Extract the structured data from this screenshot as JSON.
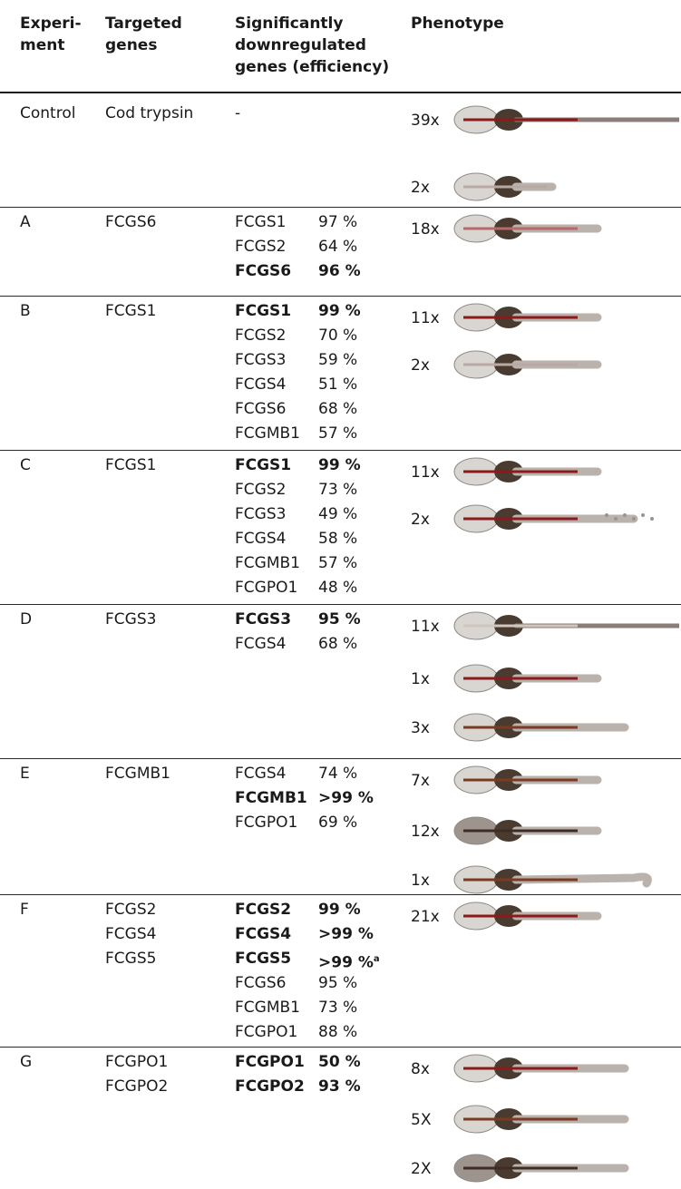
{
  "headers": {
    "experiment": [
      "Experi-",
      "ment"
    ],
    "targeted": [
      "Targeted",
      "genes"
    ],
    "downreg": [
      "Significantly",
      "downregulated",
      "genes (efficiency)"
    ],
    "phenotype": [
      "Phenotype"
    ]
  },
  "rows": [
    {
      "experiment": "Control",
      "targets": [
        "Cod trypsin"
      ],
      "genes": [
        {
          "name": "-",
          "eff": "",
          "bold": false
        }
      ],
      "phenotypes": [
        {
          "count": "39x",
          "tail": "long-thin",
          "stain": "red"
        },
        {
          "count": "2x",
          "tail": "none",
          "stain": "light"
        }
      ]
    },
    {
      "experiment": "A",
      "targets": [
        "FCGS6"
      ],
      "genes": [
        {
          "name": "FCGS1",
          "eff": "97 %",
          "bold": false
        },
        {
          "name": "FCGS2",
          "eff": "64 %",
          "bold": false
        },
        {
          "name": "FCGS6",
          "eff": "96 %",
          "bold": true
        }
      ],
      "phenotypes": [
        {
          "count": "18x",
          "tail": "short",
          "stain": "pink"
        }
      ]
    },
    {
      "experiment": "B",
      "targets": [
        "FCGS1"
      ],
      "genes": [
        {
          "name": "FCGS1",
          "eff": "99 %",
          "bold": true
        },
        {
          "name": "FCGS2",
          "eff": "70 %",
          "bold": false
        },
        {
          "name": "FCGS3",
          "eff": "59 %",
          "bold": false
        },
        {
          "name": "FCGS4",
          "eff": "51 %",
          "bold": false
        },
        {
          "name": "FCGS6",
          "eff": "68 %",
          "bold": false
        },
        {
          "name": "FCGMB1",
          "eff": "57 %",
          "bold": false
        }
      ],
      "phenotypes": [
        {
          "count": "11x",
          "tail": "short",
          "stain": "red"
        },
        {
          "count": "2x",
          "tail": "short",
          "stain": "light"
        }
      ]
    },
    {
      "experiment": "C",
      "targets": [
        "FCGS1"
      ],
      "genes": [
        {
          "name": "FCGS1",
          "eff": "99 %",
          "bold": true
        },
        {
          "name": "FCGS2",
          "eff": "73 %",
          "bold": false
        },
        {
          "name": "FCGS3",
          "eff": "49 %",
          "bold": false
        },
        {
          "name": "FCGS4",
          "eff": "58 %",
          "bold": false
        },
        {
          "name": "FCGMB1",
          "eff": "57 %",
          "bold": false
        },
        {
          "name": "FCGPO1",
          "eff": "48 %",
          "bold": false
        }
      ],
      "phenotypes": [
        {
          "count": "11x",
          "tail": "short",
          "stain": "red"
        },
        {
          "count": "2x",
          "tail": "dotted",
          "stain": "red"
        }
      ]
    },
    {
      "experiment": "D",
      "targets": [
        "FCGS3"
      ],
      "genes": [
        {
          "name": "FCGS3",
          "eff": "95 %",
          "bold": true
        },
        {
          "name": "FCGS4",
          "eff": "68 %",
          "bold": false
        }
      ],
      "phenotypes": [
        {
          "count": "11x",
          "tail": "long-pale",
          "stain": "pale"
        },
        {
          "count": "1x",
          "tail": "short",
          "stain": "red"
        },
        {
          "count": "3x",
          "tail": "medium",
          "stain": "brown"
        }
      ]
    },
    {
      "experiment": "E",
      "targets": [
        "FCGMB1"
      ],
      "genes": [
        {
          "name": "FCGS4",
          "eff": "74 %",
          "bold": false
        },
        {
          "name": "FCGMB1",
          "eff": ">99 %",
          "bold": true
        },
        {
          "name": "FCGPO1",
          "eff": "69 %",
          "bold": false
        }
      ],
      "phenotypes": [
        {
          "count": "7x",
          "tail": "short",
          "stain": "brown"
        },
        {
          "count": "12x",
          "tail": "short",
          "stain": "dark"
        },
        {
          "count": "1x",
          "tail": "hook",
          "stain": "brown"
        }
      ]
    },
    {
      "experiment": "F",
      "targets": [
        "FCGS2",
        "FCGS4",
        "FCGS5"
      ],
      "genes": [
        {
          "name": "FCGS2",
          "eff": "99 %",
          "bold": true
        },
        {
          "name": "FCGS4",
          "eff": ">99 %",
          "bold": true
        },
        {
          "name": "FCGS5",
          "eff": ">99 %",
          "bold": true,
          "sup": "a"
        },
        {
          "name": "FCGS6",
          "eff": "95 %",
          "bold": false
        },
        {
          "name": "FCGMB1",
          "eff": "73 %",
          "bold": false
        },
        {
          "name": "FCGPO1",
          "eff": "88 %",
          "bold": false
        }
      ],
      "phenotypes": [
        {
          "count": "21x",
          "tail": "short",
          "stain": "red"
        }
      ]
    },
    {
      "experiment": "G",
      "targets": [
        "FCGPO1",
        "FCGPO2"
      ],
      "genes": [
        {
          "name": "FCGPO1",
          "eff": "50 %",
          "bold": true
        },
        {
          "name": "FCGPO2",
          "eff": "93 %",
          "bold": true
        }
      ],
      "phenotypes": [
        {
          "count": "8x",
          "tail": "medium",
          "stain": "red"
        },
        {
          "count": "5X",
          "tail": "medium",
          "stain": "brown"
        },
        {
          "count": "2X",
          "tail": "medium",
          "stain": "dark"
        }
      ]
    }
  ],
  "colors": {
    "body": "#d9d6d2",
    "organ": "#4a3b30",
    "red": "#8b1a1a",
    "brown": "#7a3b22",
    "pale": "#cfc6bd"
  }
}
